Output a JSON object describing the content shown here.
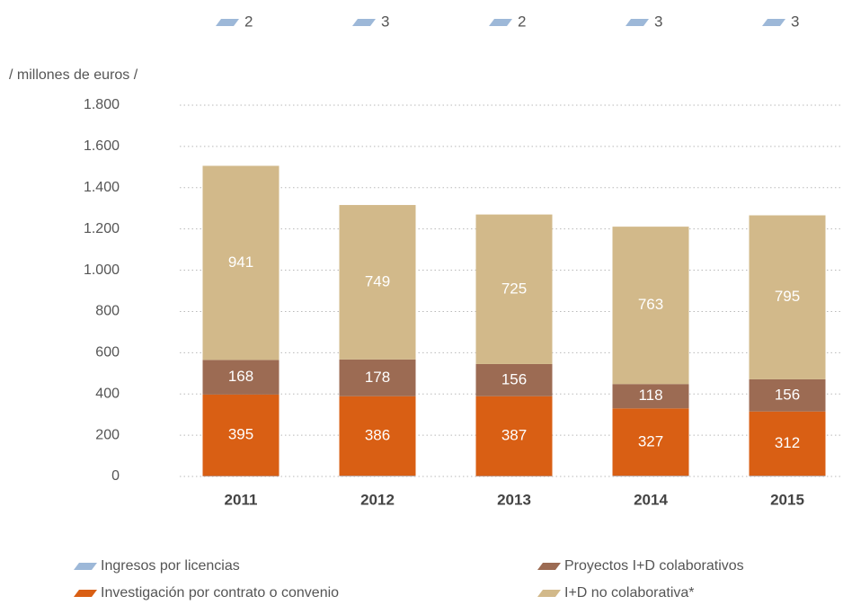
{
  "chart_data": {
    "type": "stacked_bar",
    "y_axis_label": "/  millones de euros  /",
    "categories": [
      "2011",
      "2012",
      "2013",
      "2014",
      "2015"
    ],
    "series": [
      {
        "name": "Ingresos por licencias",
        "color": "#9db8d8",
        "values": [
          2,
          3,
          2,
          3,
          3
        ]
      },
      {
        "name": "Investigación por contrato o convenio",
        "color": "#d95f14",
        "values": [
          395,
          386,
          387,
          327,
          312
        ]
      },
      {
        "name": "Proyectos I+D colaborativos",
        "color": "#9c6b53",
        "values": [
          168,
          178,
          156,
          118,
          156
        ]
      },
      {
        "name": "I+D no colaborativa*",
        "color": "#d2b98a",
        "values": [
          941,
          749,
          725,
          763,
          795
        ]
      }
    ],
    "ylim": [
      0,
      1800
    ],
    "yticks": [
      0,
      200,
      400,
      600,
      800,
      {
        "value": 1000,
        "label": "1.000"
      },
      {
        "value": 1200,
        "label": "1.200"
      },
      {
        "value": 1400,
        "label": "1.400"
      },
      {
        "value": 1600,
        "label": "1.600"
      },
      {
        "value": 1800,
        "label": "1.800"
      }
    ],
    "grid": true
  }
}
